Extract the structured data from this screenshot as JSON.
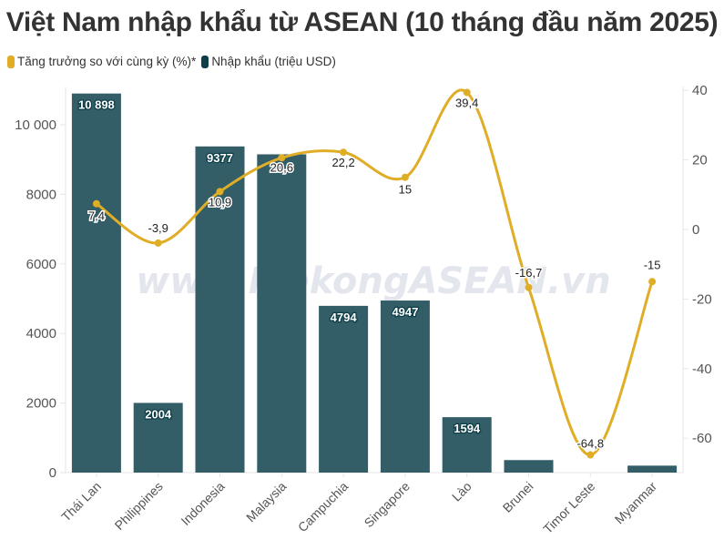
{
  "title": "Việt Nam nhập khẩu từ ASEAN (10 tháng đầu năm 2025)",
  "legend": [
    {
      "label": "Tăng trưởng so với cùng kỳ (%)*",
      "color": "#E0AD27"
    },
    {
      "label": "Nhập khẩu (triệu USD)",
      "color": "#0E3E48"
    }
  ],
  "watermark": "www.MekongASEAN.vn",
  "colors": {
    "bar": "#335E68",
    "line": "#E0AD27",
    "axis_text": "#555555",
    "grid": "#E6E6E6"
  },
  "chart_data": {
    "type": "bar+line",
    "title": "Việt Nam nhập khẩu từ ASEAN (10 tháng đầu năm 2025)",
    "categories": [
      "Thái Lan",
      "Philippines",
      "Indonesia",
      "Malaysia",
      "Campuchia",
      "Singapore",
      "Lào",
      "Brunei",
      "Timor Leste",
      "Myanmar"
    ],
    "series": [
      {
        "name": "Nhập khẩu (triệu USD)",
        "type": "bar",
        "axis": "left",
        "values": [
          10898,
          2004,
          9377,
          9150,
          4794,
          4947,
          1594,
          360,
          0,
          200
        ],
        "labels": [
          "10 898",
          "2004",
          "9377",
          "",
          "4794",
          "4947",
          "1594",
          "",
          "",
          ""
        ]
      },
      {
        "name": "Tăng trưởng so với cùng kỳ (%)*",
        "type": "line",
        "axis": "right",
        "values": [
          7.4,
          -3.9,
          10.9,
          20.6,
          22.2,
          15,
          39.4,
          -16.7,
          -64.8,
          -15
        ],
        "labels": [
          "7,4",
          "-3,9",
          "10,9",
          "20,6",
          "22,2",
          "15",
          "39,4",
          "-16,7",
          "-64,8",
          "-15"
        ]
      }
    ],
    "left_axis": {
      "ticks": [
        "0",
        "2000",
        "4000",
        "6000",
        "8000",
        "10 000"
      ],
      "ylim": [
        0,
        11000
      ]
    },
    "right_axis": {
      "ticks": [
        "40",
        "20",
        "0",
        "-20",
        "-40",
        "-60"
      ],
      "ylim": [
        -70,
        40
      ]
    },
    "grid": false,
    "legend_position": "top-left"
  }
}
